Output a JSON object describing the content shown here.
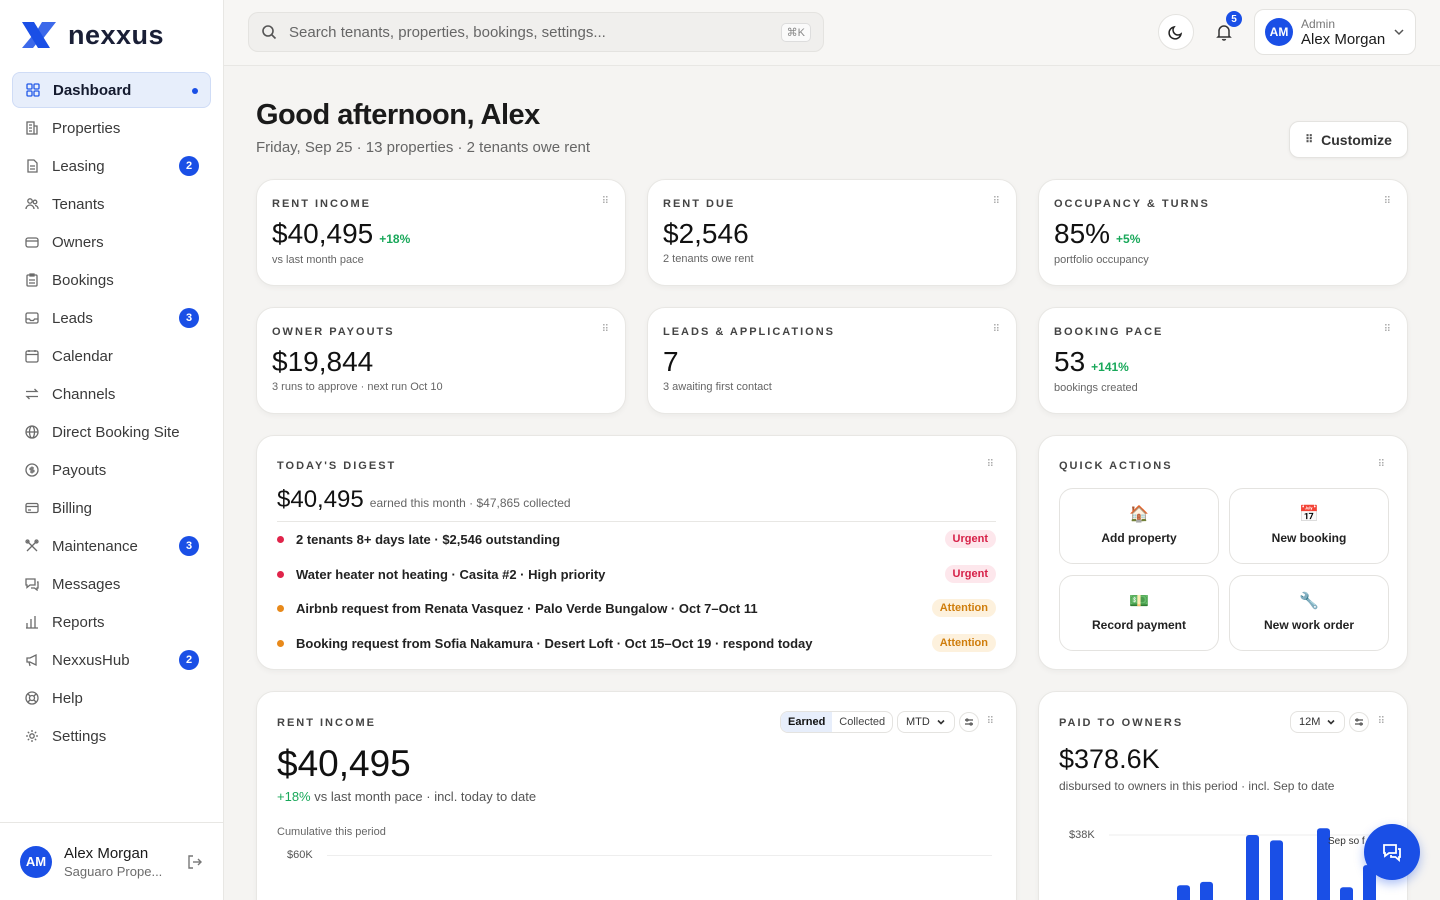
{
  "brand": {
    "name": "nexxus",
    "accent": "#1a4fe6"
  },
  "sidebar": {
    "items": [
      {
        "label": "Dashboard",
        "icon": "grid-icon",
        "active": true
      },
      {
        "label": "Properties",
        "icon": "building-icon"
      },
      {
        "label": "Leasing",
        "icon": "document-icon",
        "badge": "2"
      },
      {
        "label": "Tenants",
        "icon": "users-icon"
      },
      {
        "label": "Owners",
        "icon": "wallet-icon"
      },
      {
        "label": "Bookings",
        "icon": "clipboard-icon"
      },
      {
        "label": "Leads",
        "icon": "inbox-icon",
        "badge": "3"
      },
      {
        "label": "Calendar",
        "icon": "calendar-icon"
      },
      {
        "label": "Channels",
        "icon": "arrows-icon"
      },
      {
        "label": "Direct Booking Site",
        "icon": "globe-icon"
      },
      {
        "label": "Payouts",
        "icon": "dollar-circle-icon"
      },
      {
        "label": "Billing",
        "icon": "credit-card-icon"
      },
      {
        "label": "Maintenance",
        "icon": "tools-icon",
        "badge": "3"
      },
      {
        "label": "Messages",
        "icon": "messages-icon"
      },
      {
        "label": "Reports",
        "icon": "bar-chart-icon"
      },
      {
        "label": "NexxusHub",
        "icon": "megaphone-icon",
        "badge": "2"
      },
      {
        "label": "Help",
        "icon": "lifebuoy-icon"
      },
      {
        "label": "Settings",
        "icon": "gear-icon"
      }
    ],
    "user": {
      "initials": "AM",
      "name": "Alex Morgan",
      "org": "Saguaro Prope..."
    }
  },
  "topbar": {
    "search_placeholder": "Search tenants, properties, bookings, settings...",
    "shortcut": "⌘K",
    "notifications": "5",
    "profile": {
      "initials": "AM",
      "role": "Admin",
      "name": "Alex Morgan"
    }
  },
  "header": {
    "greeting": "Good afternoon, Alex",
    "subline": "Friday, Sep 25 · 13 properties · 2 tenants owe rent",
    "customize_label": "Customize"
  },
  "kpis": [
    {
      "label": "RENT INCOME",
      "value": "$40,495",
      "delta": "+18%",
      "sub": "vs last month pace"
    },
    {
      "label": "RENT DUE",
      "value": "$2,546",
      "delta": "",
      "sub": "2 tenants owe rent"
    },
    {
      "label": "OCCUPANCY & TURNS",
      "value": "85%",
      "delta": "+5%",
      "sub": "portfolio occupancy"
    },
    {
      "label": "OWNER PAYOUTS",
      "value": "$19,844",
      "delta": "",
      "sub": "3 runs to approve · next run Oct 10"
    },
    {
      "label": "LEADS & APPLICATIONS",
      "value": "7",
      "delta": "",
      "sub": "3 awaiting first contact"
    },
    {
      "label": "BOOKING PACE",
      "value": "53",
      "delta": "+141%",
      "sub": "bookings created"
    }
  ],
  "digest": {
    "label": "TODAY'S DIGEST",
    "value": "$40,495",
    "value_sub": "earned this month · $47,865 collected",
    "items": [
      {
        "text": "2 tenants 8+ days late · $2,546 outstanding",
        "level": "Urgent",
        "color": "#e0244a"
      },
      {
        "text": "Water heater not heating · Casita #2 · High priority",
        "level": "Urgent",
        "color": "#e0244a"
      },
      {
        "text": "Airbnb request from Renata Vasquez · Palo Verde Bungalow · Oct 7–Oct 11",
        "level": "Attention",
        "color": "#e8891a"
      },
      {
        "text": "Booking request from Sofia Nakamura · Desert Loft · Oct 15–Oct 19 · respond today",
        "level": "Attention",
        "color": "#e8891a"
      }
    ]
  },
  "quick_actions": {
    "label": "QUICK ACTIONS",
    "tiles": [
      {
        "label": "Add property",
        "icon": "🏠"
      },
      {
        "label": "New booking",
        "icon": "📅"
      },
      {
        "label": "Record payment",
        "icon": "💵"
      },
      {
        "label": "New work order",
        "icon": "🔧"
      }
    ]
  },
  "rent_income": {
    "label": "RENT INCOME",
    "toggle": [
      "Earned",
      "Collected"
    ],
    "period": "MTD",
    "value": "$40,495",
    "delta": "+18%",
    "delta_text": "vs last month pace · incl. today to date",
    "chart_caption": "Cumulative this period",
    "ytick": "$60K"
  },
  "paid_to_owners": {
    "label": "PAID TO OWNERS",
    "period": "12M",
    "value": "$378.6K",
    "sub": "disbursed to owners in this period · incl. Sep to date",
    "ytick": "$38K",
    "annotation": "Sep so f"
  },
  "chart_data": {
    "type": "bar",
    "title": "PAID TO OWNERS",
    "ylabel": "",
    "ytick_labels": [
      "$38K"
    ],
    "values_fraction_of_38K": [
      0.25,
      0.3,
      1.0,
      0.92,
      1.1,
      0.22,
      0.55
    ],
    "bar_color": "#1a4fe6"
  }
}
